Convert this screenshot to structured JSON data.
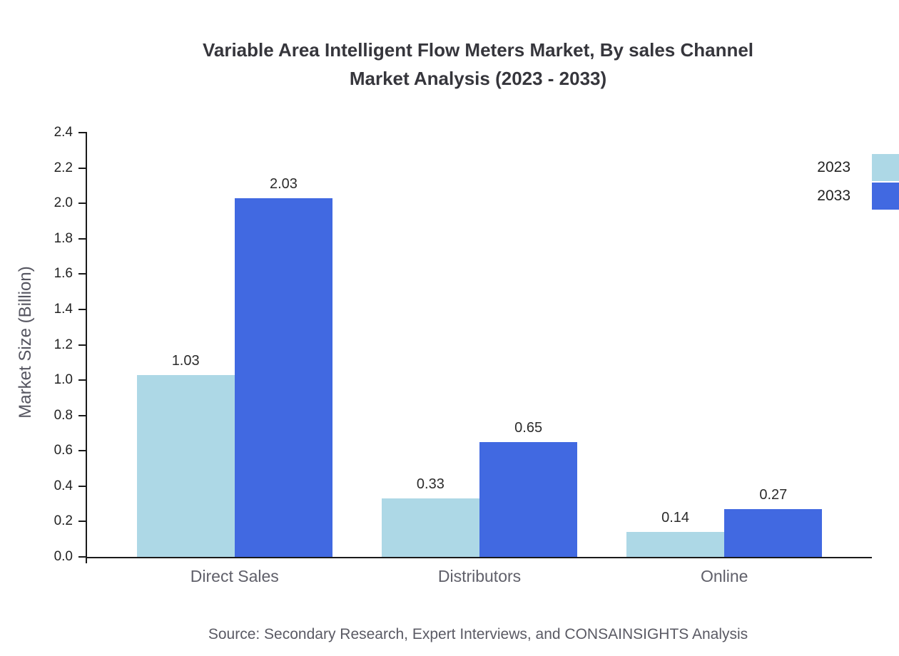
{
  "chart": {
    "title_line1": "Variable Area Intelligent Flow Meters Market, By sales Channel",
    "title_line2": "Market Analysis (2023 - 2033)",
    "source": "Source: Secondary Research, Expert Interviews, and CONSAINSIGHTS Analysis"
  },
  "chart_data": {
    "type": "bar",
    "title": "Variable Area Intelligent Flow Meters Market, By sales Channel Market Analysis (2023 - 2033)",
    "categories": [
      "Direct Sales",
      "Distributors",
      "Online"
    ],
    "series": [
      {
        "name": "2023",
        "color": "#add8e6",
        "values": [
          1.03,
          0.33,
          0.14
        ]
      },
      {
        "name": "2033",
        "color": "#4169e1",
        "values": [
          2.03,
          0.65,
          0.27
        ]
      }
    ],
    "xlabel": "",
    "ylabel": "Market Size (Billion)",
    "ylim": [
      0,
      2.4
    ],
    "ytick_step": 0.2,
    "grid": false,
    "legend_position": "top-right",
    "value_label_format": "0.00"
  }
}
